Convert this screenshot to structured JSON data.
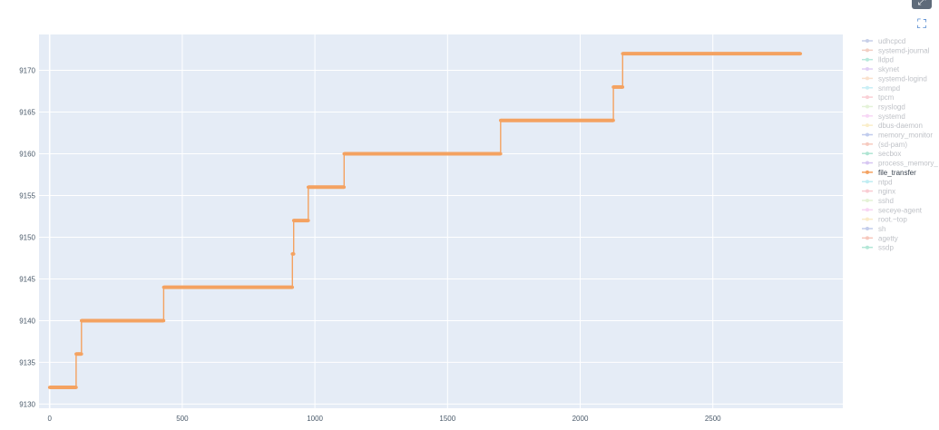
{
  "chart_data": {
    "type": "line",
    "line_shape": "step",
    "highlighted_series": "file_transfer",
    "highlight_color": "#f4a261",
    "legend_position": "right",
    "grid": true,
    "xlim": [
      -40,
      2990
    ],
    "ylim": [
      9129.5,
      9174.3
    ],
    "x_ticks": [
      0,
      500,
      1000,
      1500,
      2000,
      2500
    ],
    "x_tick_labels": [
      "0",
      "500",
      "1000",
      "1500",
      "2000",
      "2500"
    ],
    "y_ticks": [
      9130,
      9135,
      9140,
      9145,
      9150,
      9155,
      9160,
      9165,
      9170
    ],
    "y_tick_labels": [
      "9130",
      "9135",
      "9140",
      "9145",
      "9150",
      "9155",
      "9160",
      "9165",
      "9170"
    ],
    "series": [
      {
        "name": "udhcpcd",
        "color": "#9aa9d6"
      },
      {
        "name": "systemd-journal",
        "color": "#e8a893"
      },
      {
        "name": "lldpd",
        "color": "#7fd8c0"
      },
      {
        "name": "skynet",
        "color": "#c9a9ee"
      },
      {
        "name": "systemd-logind",
        "color": "#f6c9a6"
      },
      {
        "name": "snmpd",
        "color": "#9ee3ef"
      },
      {
        "name": "tpcm",
        "color": "#f7aab5"
      },
      {
        "name": "rsyslogd",
        "color": "#cfe9b9"
      },
      {
        "name": "systemd",
        "color": "#f2b8ef"
      },
      {
        "name": "dbus-daemon",
        "color": "#f7e1a0"
      },
      {
        "name": "memory_monitor",
        "color": "#8fa3e0"
      },
      {
        "name": "(sd-pam)",
        "color": "#f0a08c"
      },
      {
        "name": "secbox",
        "color": "#6fd1b0"
      },
      {
        "name": "process_memory_",
        "color": "#b79be8"
      },
      {
        "name": "file_transfer",
        "color": "#f4a261",
        "x": [
          0,
          100,
          100,
          110,
          110,
          120,
          120,
          430,
          430,
          915,
          915,
          920,
          920,
          975,
          975,
          1110,
          1110,
          1700,
          1700,
          2125,
          2125,
          2160,
          2160,
          2830
        ],
        "y": [
          9132,
          9132,
          9136,
          9136,
          9136,
          9136,
          9140,
          9140,
          9144,
          9144,
          9148,
          9148,
          9152,
          9152,
          9156,
          9156,
          9160,
          9160,
          9164,
          9164,
          9168,
          9168,
          9172,
          9172
        ]
      },
      {
        "name": "ntpd",
        "color": "#8edfe8"
      },
      {
        "name": "nginx",
        "color": "#f5a3b0"
      },
      {
        "name": "sshd",
        "color": "#cfe8b5"
      },
      {
        "name": "seceye-agent",
        "color": "#f1b3ea"
      },
      {
        "name": "root.~top",
        "color": "#f6dc9c"
      },
      {
        "name": "sh",
        "color": "#93a5dc"
      },
      {
        "name": "agetty",
        "color": "#f09a86"
      },
      {
        "name": "ssdp",
        "color": "#74d4b6"
      }
    ]
  },
  "modebar": {
    "expand_icon": "expand-icon",
    "focus_icon": "focus-icon",
    "expand_glyph": "⤢",
    "focus_glyph": "⛶"
  }
}
